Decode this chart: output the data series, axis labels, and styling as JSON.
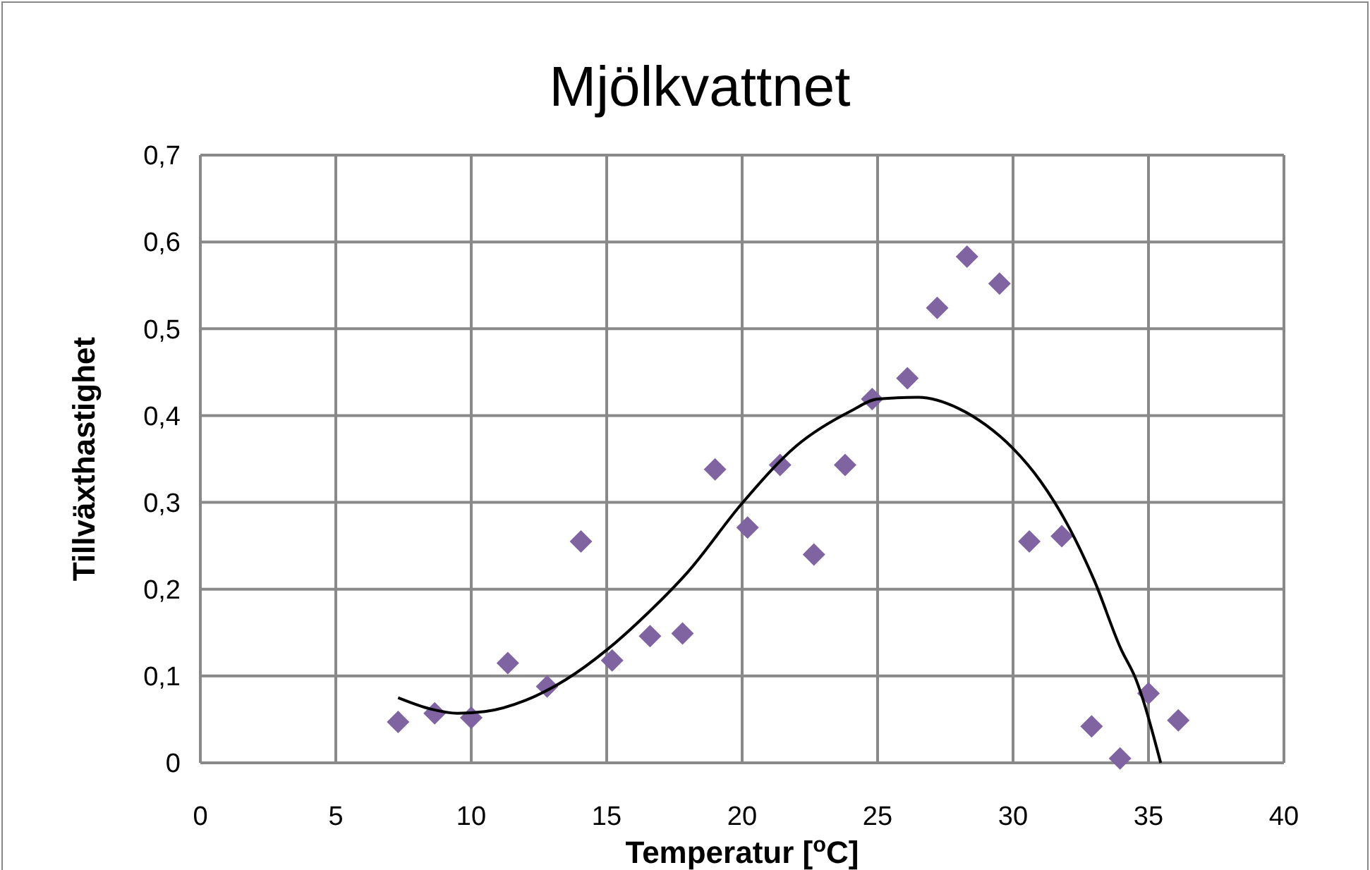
{
  "chart_data": {
    "type": "scatter",
    "title": "Mjölkvattnet",
    "xlabel": "Temperatur [$^{o}$C]",
    "ylabel": "Tillväxthastighet",
    "xlim": [
      0,
      40
    ],
    "xticks": [
      0,
      5,
      10,
      15,
      20,
      25,
      30,
      35,
      40
    ],
    "ylim": [
      0,
      0.7
    ],
    "yticks": [
      {
        "value": 0,
        "label": "0"
      },
      {
        "value": 0.1,
        "label": "0,1"
      },
      {
        "value": 0.2,
        "label": "0,2"
      },
      {
        "value": 0.3,
        "label": "0,3"
      },
      {
        "value": 0.4,
        "label": "0,4"
      },
      {
        "value": 0.5,
        "label": "0,5"
      },
      {
        "value": 0.6,
        "label": "0,6"
      },
      {
        "value": 0.7,
        "label": "0,7"
      }
    ],
    "grid": true,
    "marker": "diamond",
    "series": [
      {
        "color": "#8064a2",
        "x": [
          7.3,
          8.65,
          10.0,
          11.35,
          12.8,
          14.05,
          15.2,
          16.6,
          17.8,
          19.0,
          20.2,
          21.4,
          22.65,
          23.8,
          24.8,
          26.1,
          27.2,
          28.3,
          29.5,
          30.6,
          31.8,
          32.9,
          33.95,
          35.0,
          36.1
        ],
        "values": [
          0.047,
          0.057,
          0.052,
          0.115,
          0.088,
          0.255,
          0.118,
          0.146,
          0.149,
          0.338,
          0.271,
          0.343,
          0.24,
          0.343,
          0.419,
          0.443,
          0.524,
          0.583,
          0.552,
          0.255,
          0.261,
          0.042,
          0.005,
          0.08,
          0.049
        ]
      },
      {
        "type": "line",
        "color": "#000000",
        "marker": "none",
        "x": [
          7.3,
          8.5,
          9.5,
          10.5,
          12,
          13.5,
          15,
          16.5,
          18,
          20,
          22,
          24,
          25,
          26.5,
          28,
          29,
          30,
          31,
          32,
          33,
          34,
          34.5,
          35.45
        ],
        "values": [
          0.075,
          0.062,
          0.057,
          0.059,
          0.072,
          0.096,
          0.13,
          0.172,
          0.22,
          0.299,
          0.365,
          0.405,
          0.419,
          0.421,
          0.408,
          0.389,
          0.362,
          0.325,
          0.275,
          0.21,
          0.13,
          0.099,
          0
        ]
      }
    ]
  }
}
